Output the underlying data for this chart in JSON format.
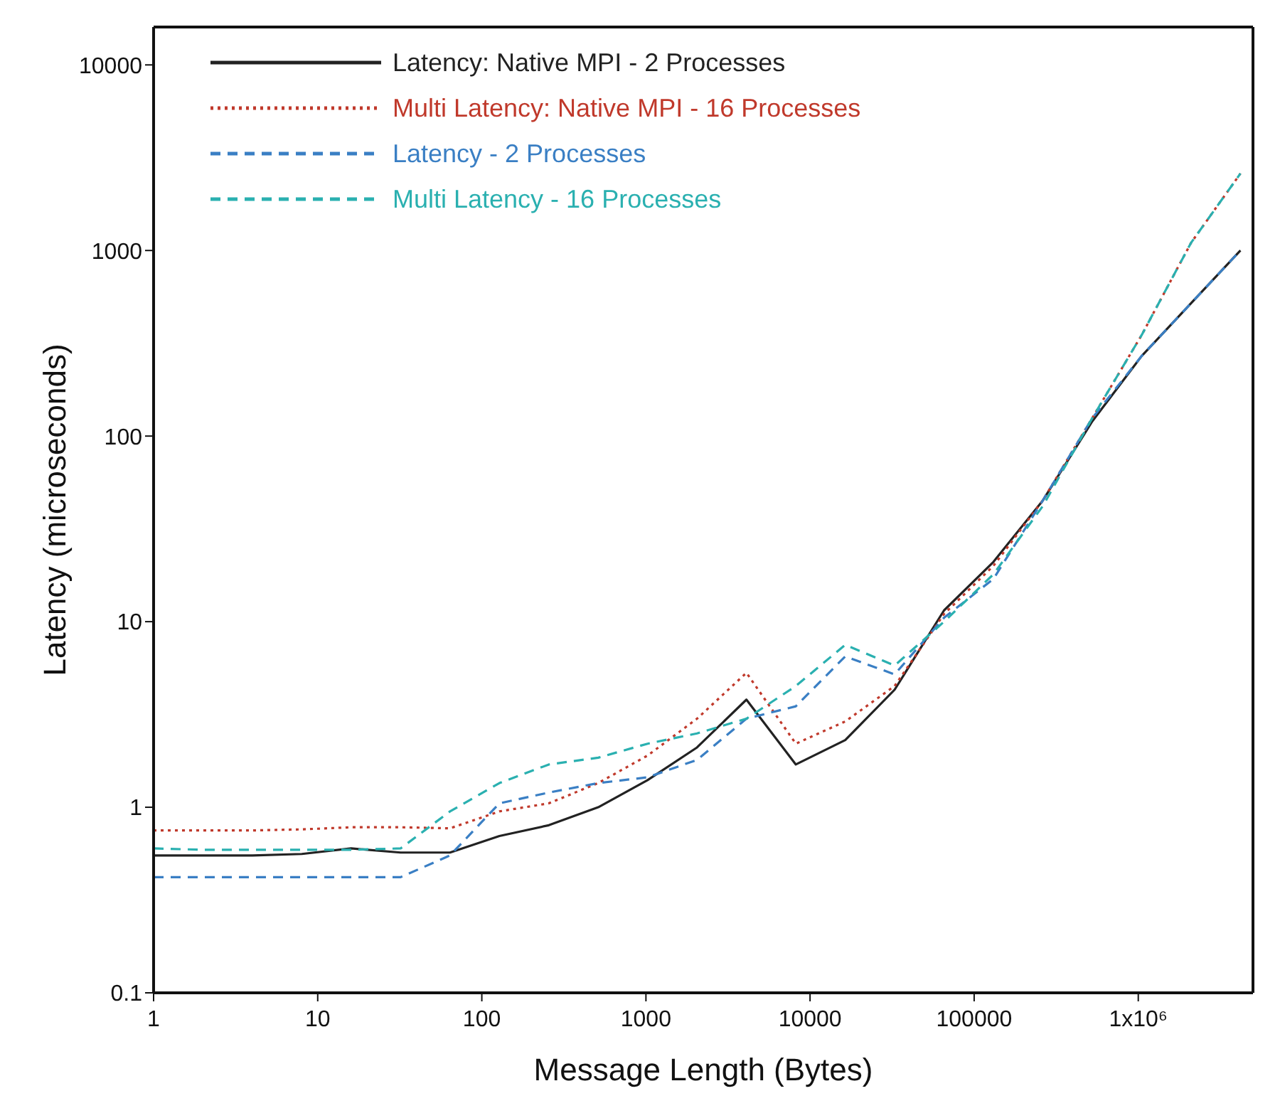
{
  "chart_data": {
    "type": "line",
    "xlabel": "Message Length (Bytes)",
    "ylabel": "Latency (microseconds)",
    "log": "xy",
    "legend": "top left",
    "grid": false,
    "marker": "none",
    "x": [
      1,
      2,
      4,
      8,
      16,
      32,
      64,
      128,
      256,
      512,
      1024,
      2048,
      4096,
      8192,
      16384,
      32768,
      65536,
      131072,
      262144,
      524288,
      1048576,
      2097152,
      4194304
    ],
    "xlim": [
      1,
      5000000
    ],
    "ylim": [
      0.1,
      16000
    ],
    "xticks": [
      1,
      10,
      100,
      1000,
      10000,
      100000,
      {
        "value": 1000000,
        "label": "1x10⁶"
      }
    ],
    "yticks": [
      0.1,
      1,
      10,
      100,
      1000,
      10000
    ],
    "series": [
      {
        "name": "Latency: Native MPI - 2 Processes",
        "color": "#222222",
        "line_style": "solid",
        "values": [
          0.55,
          0.55,
          0.55,
          0.56,
          0.6,
          0.57,
          0.57,
          0.7,
          0.8,
          1.0,
          1.4,
          2.1,
          3.8,
          1.7,
          2.3,
          4.3,
          11.5,
          21,
          45,
          120,
          270,
          520,
          1000
        ]
      },
      {
        "name": "Multi Latency: Native MPI - 16 Processes",
        "color": "#c0392b",
        "line_style": "dotted",
        "values": [
          0.75,
          0.75,
          0.75,
          0.76,
          0.78,
          0.78,
          0.77,
          0.95,
          1.05,
          1.35,
          1.9,
          3.0,
          5.3,
          2.2,
          2.9,
          4.5,
          11,
          20,
          45,
          125,
          350,
          1100,
          2600
        ]
      },
      {
        "name": "Latency - 2 Processes",
        "color": "#3a7fc4",
        "line_style": "dashed",
        "values": [
          0.42,
          0.42,
          0.42,
          0.42,
          0.42,
          0.42,
          0.55,
          1.05,
          1.2,
          1.35,
          1.45,
          1.8,
          3.0,
          3.5,
          6.5,
          5.2,
          10.5,
          17,
          45,
          125,
          270,
          520,
          1000
        ]
      },
      {
        "name": "Multi Latency - 16 Processes",
        "color": "#2ab0b0",
        "line_style": "dashed",
        "values": [
          0.6,
          0.59,
          0.59,
          0.59,
          0.59,
          0.6,
          0.95,
          1.35,
          1.7,
          1.85,
          2.2,
          2.5,
          3.0,
          4.5,
          7.5,
          5.8,
          10,
          18,
          42,
          125,
          350,
          1100,
          2600
        ]
      }
    ]
  }
}
